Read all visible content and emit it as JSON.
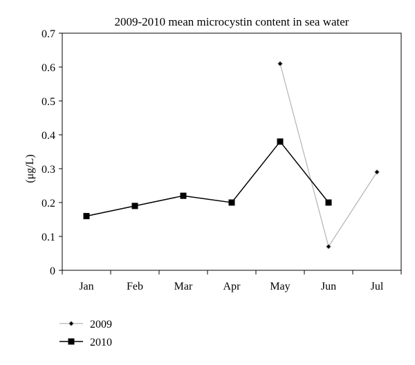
{
  "chart_data": {
    "type": "line",
    "title": "2009-2010 mean microcystin content in sea water",
    "xlabel": "",
    "ylabel": "(μg/L)",
    "categories": [
      "Jan",
      "Feb",
      "Mar",
      "Apr",
      "May",
      "Jun",
      "Jul"
    ],
    "ylim": [
      0,
      0.7
    ],
    "yticks": [
      "0",
      "0.1",
      "0.2",
      "0.3",
      "0.4",
      "0.5",
      "0.6",
      "0.7"
    ],
    "grid": false,
    "legend_position": "bottom-left",
    "series": [
      {
        "name": "2009",
        "color": "#b3b3b3",
        "marker": "diamond",
        "values": [
          null,
          null,
          null,
          null,
          0.61,
          0.07,
          0.29
        ]
      },
      {
        "name": "2010",
        "color": "#000000",
        "marker": "square",
        "values": [
          0.16,
          0.19,
          0.22,
          0.2,
          0.38,
          0.2,
          null
        ]
      }
    ]
  }
}
